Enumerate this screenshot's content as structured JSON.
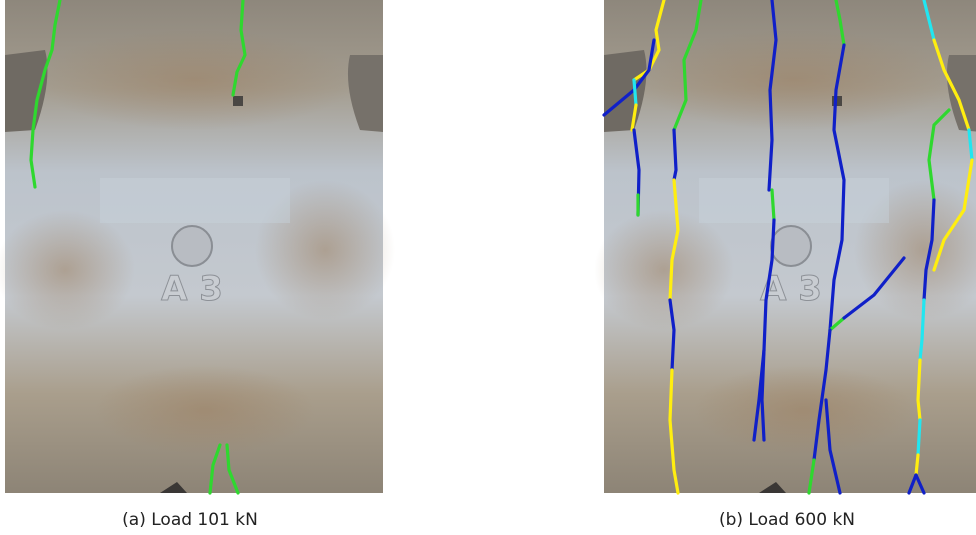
{
  "panels": [
    {
      "specimen": "A 3",
      "caption": "(a) Load 101 kN"
    },
    {
      "specimen": "A 3",
      "caption": "(b) Load 600 kN"
    }
  ]
}
